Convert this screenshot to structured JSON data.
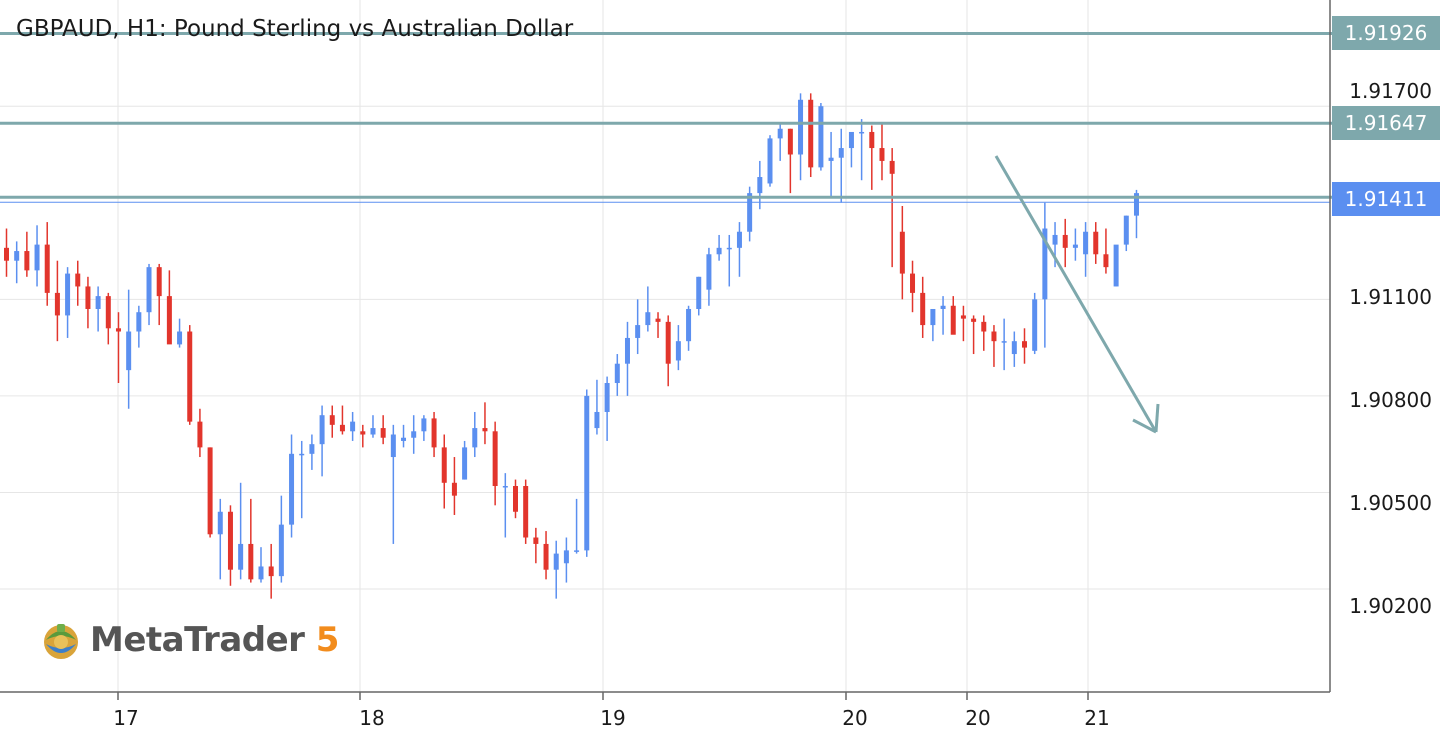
{
  "chart_data": {
    "type": "candlestick",
    "title": "GBPAUD, H1: Pound Sterling vs Australian Dollar",
    "y_ticks": [
      "1.91700",
      "1.91100",
      "1.90800",
      "1.90500",
      "1.90200"
    ],
    "x_ticks": [
      "17",
      "18",
      "19",
      "20",
      "20",
      "21"
    ],
    "ylim": [
      1.8988,
      1.9203
    ],
    "grid": true,
    "horizontal_levels": [
      {
        "label": "1.91926",
        "value": 1.91926,
        "color": "#7ea8ac"
      },
      {
        "label": "1.91647",
        "value": 1.91647,
        "color": "#7ea8ac"
      },
      {
        "label": "1.91411",
        "value": 1.91411,
        "color": "#5b8ff0"
      }
    ],
    "annotation": {
      "type": "arrow",
      "direction": "down",
      "color": "#7ea8ac"
    },
    "up_color": "#5b8ff0",
    "down_color": "#e2352c",
    "candles": [
      [
        1.9126,
        1.9132,
        1.9117,
        1.9122
      ],
      [
        1.9122,
        1.9128,
        1.9115,
        1.9125
      ],
      [
        1.9125,
        1.9131,
        1.9117,
        1.9119
      ],
      [
        1.9119,
        1.9133,
        1.9114,
        1.9127
      ],
      [
        1.9127,
        1.9134,
        1.9108,
        1.9112
      ],
      [
        1.9112,
        1.9122,
        1.9097,
        1.9105
      ],
      [
        1.9105,
        1.912,
        1.9098,
        1.9118
      ],
      [
        1.9118,
        1.9122,
        1.9108,
        1.9114
      ],
      [
        1.9114,
        1.9117,
        1.9101,
        1.9107
      ],
      [
        1.9107,
        1.9114,
        1.91,
        1.9111
      ],
      [
        1.9111,
        1.9112,
        1.9096,
        1.9101
      ],
      [
        1.9101,
        1.9106,
        1.9084,
        1.91
      ],
      [
        1.9088,
        1.9113,
        1.9076,
        1.91
      ],
      [
        1.91,
        1.9108,
        1.9095,
        1.9106
      ],
      [
        1.9106,
        1.9121,
        1.9102,
        1.912
      ],
      [
        1.912,
        1.9121,
        1.9102,
        1.9111
      ],
      [
        1.9111,
        1.9119,
        1.9097,
        1.9096
      ],
      [
        1.9096,
        1.9104,
        1.9095,
        1.91
      ],
      [
        1.91,
        1.9102,
        1.9071,
        1.9072
      ],
      [
        1.9072,
        1.9076,
        1.9061,
        1.9064
      ],
      [
        1.9064,
        1.9064,
        1.9036,
        1.9037
      ],
      [
        1.9037,
        1.9048,
        1.9023,
        1.9044
      ],
      [
        1.9044,
        1.9046,
        1.9021,
        1.9026
      ],
      [
        1.9026,
        1.9053,
        1.9023,
        1.9034
      ],
      [
        1.9034,
        1.9048,
        1.9022,
        1.9023
      ],
      [
        1.9023,
        1.9033,
        1.9022,
        1.9027
      ],
      [
        1.9027,
        1.9034,
        1.9017,
        1.9024
      ],
      [
        1.9024,
        1.9049,
        1.9022,
        1.904
      ],
      [
        1.904,
        1.9068,
        1.9036,
        1.9062
      ],
      [
        1.9062,
        1.9066,
        1.9042,
        1.9062
      ],
      [
        1.9062,
        1.9068,
        1.9057,
        1.9065
      ],
      [
        1.9065,
        1.9077,
        1.9055,
        1.9074
      ],
      [
        1.9074,
        1.9077,
        1.9067,
        1.9071
      ],
      [
        1.9071,
        1.9077,
        1.9068,
        1.9069
      ],
      [
        1.9069,
        1.9075,
        1.9066,
        1.9072
      ],
      [
        1.9069,
        1.9071,
        1.9064,
        1.9068
      ],
      [
        1.9068,
        1.9074,
        1.9067,
        1.907
      ],
      [
        1.907,
        1.9074,
        1.9065,
        1.9067
      ],
      [
        1.9061,
        1.9071,
        1.9034,
        1.9068
      ],
      [
        1.9066,
        1.9071,
        1.9064,
        1.9067
      ],
      [
        1.9067,
        1.9074,
        1.9062,
        1.9069
      ],
      [
        1.9069,
        1.9074,
        1.9066,
        1.9073
      ],
      [
        1.9073,
        1.9075,
        1.9061,
        1.9064
      ],
      [
        1.9064,
        1.9068,
        1.9045,
        1.9053
      ],
      [
        1.9053,
        1.9061,
        1.9043,
        1.9049
      ],
      [
        1.9054,
        1.9066,
        1.9054,
        1.9064
      ],
      [
        1.9064,
        1.9075,
        1.9061,
        1.907
      ],
      [
        1.907,
        1.9078,
        1.9065,
        1.9069
      ],
      [
        1.9069,
        1.9072,
        1.9046,
        1.9052
      ],
      [
        1.9052,
        1.9056,
        1.9036,
        1.9052
      ],
      [
        1.9052,
        1.9054,
        1.9042,
        1.9044
      ],
      [
        1.9052,
        1.9054,
        1.9034,
        1.9036
      ],
      [
        1.9036,
        1.9039,
        1.9028,
        1.9034
      ],
      [
        1.9034,
        1.9038,
        1.9023,
        1.9026
      ],
      [
        1.9026,
        1.9035,
        1.9017,
        1.9031
      ],
      [
        1.9028,
        1.9036,
        1.9022,
        1.9032
      ],
      [
        1.9032,
        1.9048,
        1.9031,
        1.9032
      ],
      [
        1.9032,
        1.9082,
        1.903,
        1.908
      ],
      [
        1.907,
        1.9085,
        1.9068,
        1.9075
      ],
      [
        1.9075,
        1.9086,
        1.9066,
        1.9084
      ],
      [
        1.9084,
        1.9093,
        1.908,
        1.909
      ],
      [
        1.909,
        1.9103,
        1.908,
        1.9098
      ],
      [
        1.9098,
        1.911,
        1.9093,
        1.9102
      ],
      [
        1.9102,
        1.9114,
        1.91,
        1.9106
      ],
      [
        1.9104,
        1.9106,
        1.9098,
        1.9103
      ],
      [
        1.9103,
        1.9105,
        1.9083,
        1.909
      ],
      [
        1.9091,
        1.9102,
        1.9088,
        1.9097
      ],
      [
        1.9097,
        1.9108,
        1.9094,
        1.9107
      ],
      [
        1.9107,
        1.9117,
        1.9105,
        1.9117
      ],
      [
        1.9113,
        1.9126,
        1.9108,
        1.9124
      ],
      [
        1.9124,
        1.913,
        1.9122,
        1.9126
      ],
      [
        1.9126,
        1.913,
        1.9114,
        1.9126
      ],
      [
        1.9126,
        1.9134,
        1.9117,
        1.9131
      ],
      [
        1.9131,
        1.9145,
        1.9128,
        1.9143
      ],
      [
        1.9143,
        1.9153,
        1.9138,
        1.9148
      ],
      [
        1.9146,
        1.9161,
        1.9145,
        1.916
      ],
      [
        1.916,
        1.9165,
        1.9153,
        1.9163
      ],
      [
        1.9163,
        1.9163,
        1.9143,
        1.9155
      ],
      [
        1.9155,
        1.9174,
        1.9147,
        1.9172
      ],
      [
        1.9172,
        1.9174,
        1.9148,
        1.9151
      ],
      [
        1.9151,
        1.9171,
        1.915,
        1.917
      ],
      [
        1.9153,
        1.9162,
        1.9142,
        1.9154
      ],
      [
        1.9154,
        1.9163,
        1.914,
        1.9157
      ],
      [
        1.9157,
        1.916,
        1.9151,
        1.9162
      ],
      [
        1.9162,
        1.9166,
        1.9147,
        1.9162
      ],
      [
        1.9162,
        1.9164,
        1.9144,
        1.9157
      ],
      [
        1.9157,
        1.9165,
        1.9147,
        1.9153
      ],
      [
        1.9153,
        1.9157,
        1.912,
        1.9149
      ],
      [
        1.9131,
        1.9139,
        1.911,
        1.9118
      ],
      [
        1.9118,
        1.9122,
        1.9106,
        1.9112
      ],
      [
        1.9112,
        1.9117,
        1.9098,
        1.9102
      ],
      [
        1.9102,
        1.9107,
        1.9097,
        1.9107
      ],
      [
        1.9107,
        1.9111,
        1.9099,
        1.9108
      ],
      [
        1.9108,
        1.9111,
        1.91,
        1.9099
      ],
      [
        1.9105,
        1.9108,
        1.9097,
        1.9104
      ],
      [
        1.9104,
        1.9105,
        1.9093,
        1.9103
      ],
      [
        1.9103,
        1.9105,
        1.9094,
        1.91
      ],
      [
        1.91,
        1.9102,
        1.9089,
        1.9097
      ],
      [
        1.9097,
        1.9104,
        1.9088,
        1.9097
      ],
      [
        1.9093,
        1.91,
        1.9089,
        1.9097
      ],
      [
        1.9097,
        1.9101,
        1.909,
        1.9095
      ],
      [
        1.9094,
        1.9112,
        1.9093,
        1.911
      ],
      [
        1.911,
        1.914,
        1.9095,
        1.9132
      ],
      [
        1.9127,
        1.9134,
        1.912,
        1.913
      ],
      [
        1.913,
        1.9135,
        1.912,
        1.9126
      ],
      [
        1.9126,
        1.9132,
        1.9122,
        1.9127
      ],
      [
        1.9124,
        1.9134,
        1.9117,
        1.9131
      ],
      [
        1.9131,
        1.9134,
        1.9121,
        1.9124
      ],
      [
        1.9124,
        1.9132,
        1.9118,
        1.912
      ],
      [
        1.9114,
        1.9125,
        1.9114,
        1.9127
      ],
      [
        1.9127,
        1.9136,
        1.9125,
        1.9136
      ],
      [
        1.9136,
        1.9144,
        1.9129,
        1.9143
      ]
    ]
  }
}
